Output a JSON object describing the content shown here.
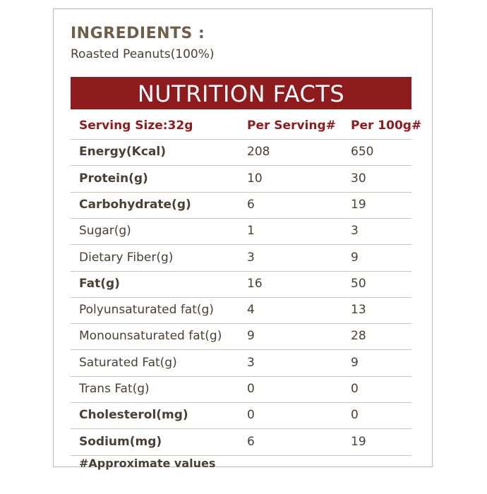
{
  "ingredients": {
    "title": "INGREDIENTS :",
    "text": "Roasted Peanuts(100%)"
  },
  "banner": "NUTRITION FACTS",
  "table": {
    "header": [
      "Serving Size:32g",
      "Per Serving#",
      "Per 100g#"
    ],
    "rows": [
      {
        "label": "Energy(Kcal)",
        "per_serving": 208,
        "per_100g": 650,
        "bold": true
      },
      {
        "label": "Protein(g)",
        "per_serving": 10,
        "per_100g": 30,
        "bold": true
      },
      {
        "label": "Carbohydrate(g)",
        "per_serving": 6,
        "per_100g": 19,
        "bold": true
      },
      {
        "label": "Sugar(g)",
        "per_serving": 1,
        "per_100g": 3,
        "bold": false
      },
      {
        "label": "Dietary Fiber(g)",
        "per_serving": 3,
        "per_100g": 9,
        "bold": false
      },
      {
        "label": "Fat(g)",
        "per_serving": 16,
        "per_100g": 50,
        "bold": true
      },
      {
        "label": "Polyunsaturated fat(g)",
        "per_serving": 4,
        "per_100g": 13,
        "bold": false
      },
      {
        "label": "Monounsaturated fat(g)",
        "per_serving": 9,
        "per_100g": 28,
        "bold": false
      },
      {
        "label": "Saturated Fat(g)",
        "per_serving": 3,
        "per_100g": 9,
        "bold": false
      },
      {
        "label": "Trans Fat(g)",
        "per_serving": 0,
        "per_100g": 0,
        "bold": false
      },
      {
        "label": "Cholesterol(mg)",
        "per_serving": 0,
        "per_100g": 0,
        "bold": true
      },
      {
        "label": "Sodium(mg)",
        "per_serving": 6,
        "per_100g": 19,
        "bold": true
      }
    ],
    "footnote": "#Approximate values"
  }
}
